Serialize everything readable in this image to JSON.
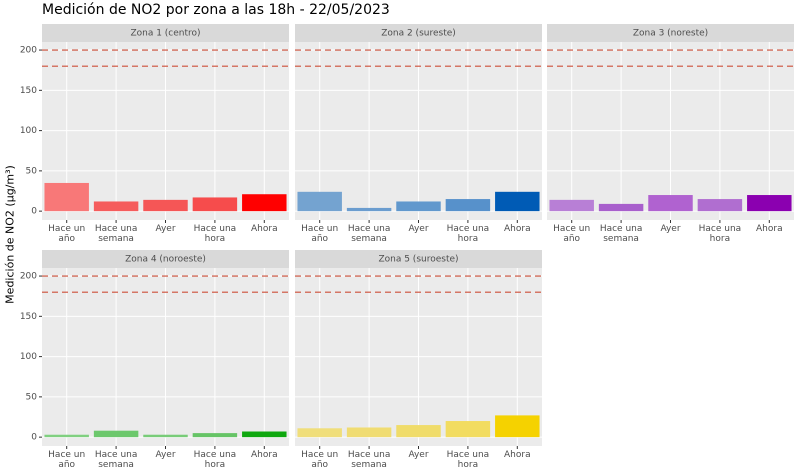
{
  "title": "Medición de NO2 por zona a las 18h - 22/05/2023",
  "y_label": "Medición de NO2 (µg/m³)",
  "chart_data": [
    {
      "type": "bar",
      "title": "Zona 1 (centro)",
      "categories": [
        "Hace un\naño",
        "Hace una\nsemana",
        "Ayer",
        "Hace una\nhora",
        "Ahora"
      ],
      "values": [
        35,
        12,
        14,
        17,
        21
      ],
      "colors": [
        "#f87878",
        "#f55c5c",
        "#f55656",
        "#f64c4c",
        "#ff0000"
      ],
      "ylim": [
        -11,
        210
      ],
      "yticks": [
        0,
        50,
        100,
        150,
        200
      ],
      "grid": true,
      "reference_lines": [
        200,
        180
      ],
      "reference_line_color": "#cd4f39"
    },
    {
      "type": "bar",
      "title": "Zona 2 (sureste)",
      "categories": [
        "Hace un\naño",
        "Hace una\nsemana",
        "Ayer",
        "Hace una\nhora",
        "Ahora"
      ],
      "values": [
        24,
        4,
        12,
        15,
        24
      ],
      "colors": [
        "#74a3d0",
        "#6b9dcf",
        "#6198cd",
        "#5791cb",
        "#005bb5"
      ],
      "ylim": [
        -11,
        210
      ],
      "yticks": [
        0,
        50,
        100,
        150,
        200
      ],
      "grid": true,
      "reference_lines": [
        200,
        180
      ],
      "reference_line_color": "#cd4f39"
    },
    {
      "type": "bar",
      "title": "Zona 3 (noreste)",
      "categories": [
        "Hace un\naño",
        "Hace una\nsemana",
        "Ayer",
        "Hace una\nhora",
        "Ahora"
      ],
      "values": [
        14,
        9,
        20,
        15,
        20
      ],
      "colors": [
        "#b87fd6",
        "#a85fcc",
        "#b062d0",
        "#b06ed0",
        "#8b00b0"
      ],
      "ylim": [
        -11,
        210
      ],
      "yticks": [
        0,
        50,
        100,
        150,
        200
      ],
      "grid": true,
      "reference_lines": [
        200,
        180
      ],
      "reference_line_color": "#cd4f39"
    },
    {
      "type": "bar",
      "title": "Zona 4 (noroeste)",
      "categories": [
        "Hace un\naño",
        "Hace una\nsemana",
        "Ayer",
        "Hace una\nhora",
        "Ahora"
      ],
      "values": [
        3,
        8,
        3,
        5,
        7
      ],
      "colors": [
        "#80d080",
        "#6cc86c",
        "#78cc78",
        "#66c466",
        "#0fa80f"
      ],
      "ylim": [
        -11,
        210
      ],
      "yticks": [
        0,
        50,
        100,
        150,
        200
      ],
      "grid": true,
      "reference_lines": [
        200,
        180
      ],
      "reference_line_color": "#cd4f39"
    },
    {
      "type": "bar",
      "title": "Zona 5 (suroeste)",
      "categories": [
        "Hace un\naño",
        "Hace una\nsemana",
        "Ayer",
        "Hace una\nhora",
        "Ahora"
      ],
      "values": [
        11,
        12,
        15,
        20,
        27
      ],
      "colors": [
        "#f0de7a",
        "#f0dc72",
        "#f0dc6a",
        "#f2dc60",
        "#f5d200"
      ],
      "ylim": [
        -11,
        210
      ],
      "yticks": [
        0,
        50,
        100,
        150,
        200
      ],
      "grid": true,
      "reference_lines": [
        200,
        180
      ],
      "reference_line_color": "#cd4f39"
    }
  ]
}
